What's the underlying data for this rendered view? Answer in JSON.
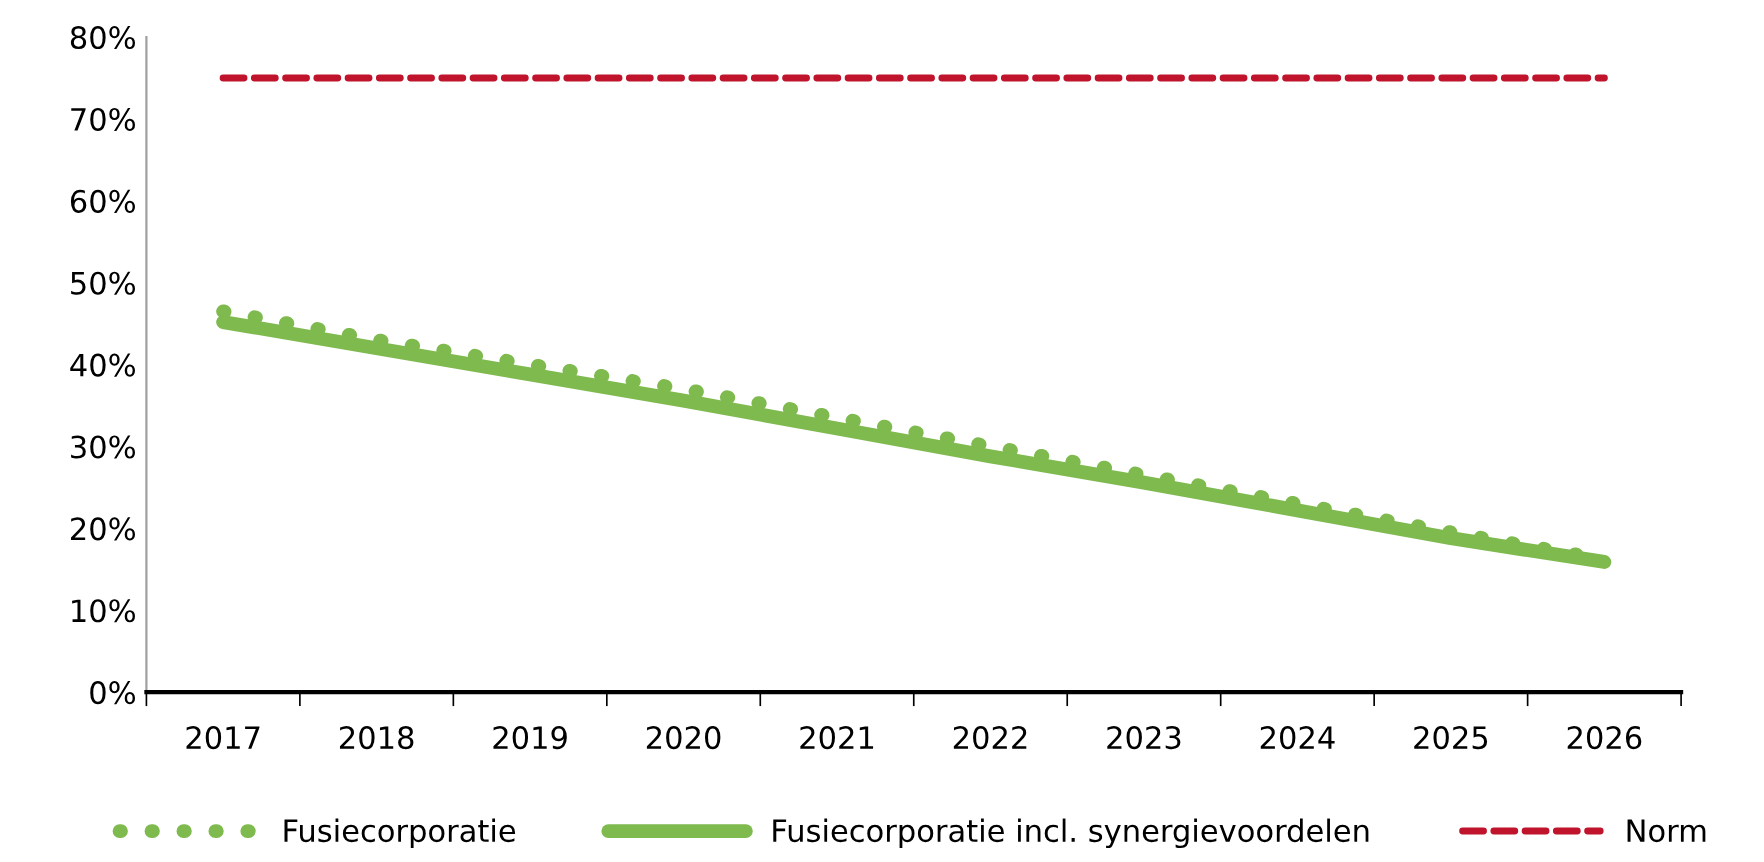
{
  "chart_data": {
    "type": "line",
    "categories": [
      "2017",
      "2018",
      "2019",
      "2020",
      "2021",
      "2022",
      "2023",
      "2024",
      "2025",
      "2026"
    ],
    "series": [
      {
        "name": "Fusiecorporatie",
        "color": "#7fba4f",
        "line_style": "dotted",
        "values": [
          46.5,
          43,
          40,
          37,
          33.5,
          30,
          26.5,
          23,
          19.5,
          16.2
        ]
      },
      {
        "name": "Fusiecorporatie incl. synergievoordelen",
        "color": "#7fba4f",
        "line_style": "solid",
        "values": [
          45.2,
          42,
          38.8,
          35.6,
          32.2,
          28.8,
          25.6,
          22.2,
          18.8,
          15.9
        ]
      },
      {
        "name": "Norm",
        "color": "#c0142c",
        "line_style": "dashed",
        "values": [
          75,
          75,
          75,
          75,
          75,
          75,
          75,
          75,
          75,
          75
        ]
      }
    ],
    "ylim": [
      0,
      80
    ],
    "yticks": [
      {
        "value": 0,
        "label": "0%"
      },
      {
        "value": 10,
        "label": "10%"
      },
      {
        "value": 20,
        "label": "20%"
      },
      {
        "value": 30,
        "label": "30%"
      },
      {
        "value": 40,
        "label": "40%"
      },
      {
        "value": 50,
        "label": "50%"
      },
      {
        "value": 60,
        "label": "60%"
      },
      {
        "value": 70,
        "label": "70%"
      },
      {
        "value": 80,
        "label": "80%"
      }
    ],
    "grid": false,
    "legend": "bottom",
    "marker": "none"
  }
}
